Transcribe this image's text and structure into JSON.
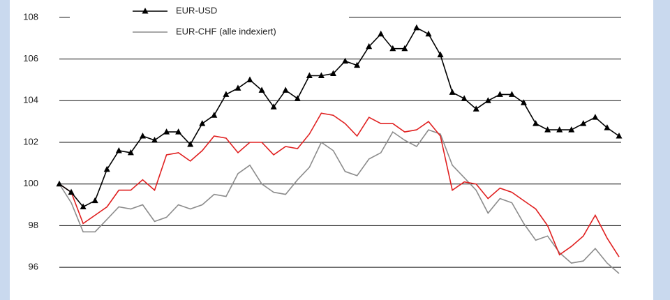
{
  "chart_data": {
    "type": "line",
    "categories": [
      null,
      null,
      null,
      null,
      null,
      null,
      null,
      null,
      null,
      null,
      null,
      null,
      null,
      null,
      null,
      null,
      null,
      null,
      null,
      null,
      null,
      null,
      null,
      null,
      null,
      null,
      null,
      null,
      null,
      null,
      null,
      null,
      null,
      null,
      null,
      null,
      null,
      null,
      null,
      null,
      null,
      null,
      null,
      null,
      null,
      null,
      null,
      null
    ],
    "series": [
      {
        "name": "EUR-USD",
        "color": "#000000",
        "marker": "triangle",
        "values": [
          100,
          99.6,
          98.9,
          99.2,
          100.7,
          101.6,
          101.5,
          102.3,
          102.1,
          102.5,
          102.5,
          101.9,
          102.9,
          103.3,
          104.3,
          104.6,
          105.0,
          104.5,
          103.7,
          104.5,
          104.1,
          105.2,
          105.2,
          105.3,
          105.9,
          105.7,
          106.6,
          107.2,
          106.5,
          106.5,
          107.5,
          107.2,
          106.2,
          104.4,
          104.1,
          103.6,
          104.0,
          104.3,
          104.3,
          103.9,
          102.9,
          102.6,
          102.6,
          102.6,
          102.9,
          103.2,
          102.7,
          102.3
        ]
      },
      {
        "color": "#e02020",
        "values": [
          100,
          99.6,
          98.1,
          98.5,
          98.9,
          99.7,
          99.7,
          100.2,
          99.7,
          101.4,
          101.5,
          101.1,
          101.6,
          102.3,
          102.2,
          101.5,
          102.0,
          102.0,
          101.4,
          101.8,
          101.7,
          102.4,
          103.4,
          103.3,
          102.9,
          102.3,
          103.2,
          102.9,
          102.9,
          102.5,
          102.6,
          103.0,
          102.3,
          99.7,
          100.1,
          100.0,
          99.3,
          99.8,
          99.6,
          99.2,
          98.8,
          98.0,
          96.6,
          97.0,
          97.5,
          98.5,
          97.4,
          96.5
        ]
      },
      {
        "name": "EUR-CHF (alle indexiert)",
        "color": "#8c8c8c",
        "values": [
          100,
          99.1,
          97.7,
          97.7,
          98.3,
          98.9,
          98.8,
          99.0,
          98.2,
          98.4,
          99.0,
          98.8,
          99.0,
          99.5,
          99.4,
          100.5,
          100.9,
          100.0,
          99.6,
          99.5,
          100.2,
          100.8,
          102.0,
          101.6,
          100.6,
          100.4,
          101.2,
          101.5,
          102.5,
          102.1,
          101.8,
          102.6,
          102.4,
          100.9,
          100.3,
          99.7,
          98.6,
          99.3,
          99.1,
          98.1,
          97.3,
          97.5,
          96.7,
          96.2,
          96.3,
          96.9,
          96.2,
          95.7
        ]
      }
    ],
    "ylim": [
      95.5,
      108.5
    ],
    "yticks": [
      96,
      98,
      100,
      102,
      104,
      106,
      108
    ],
    "grid": true
  }
}
